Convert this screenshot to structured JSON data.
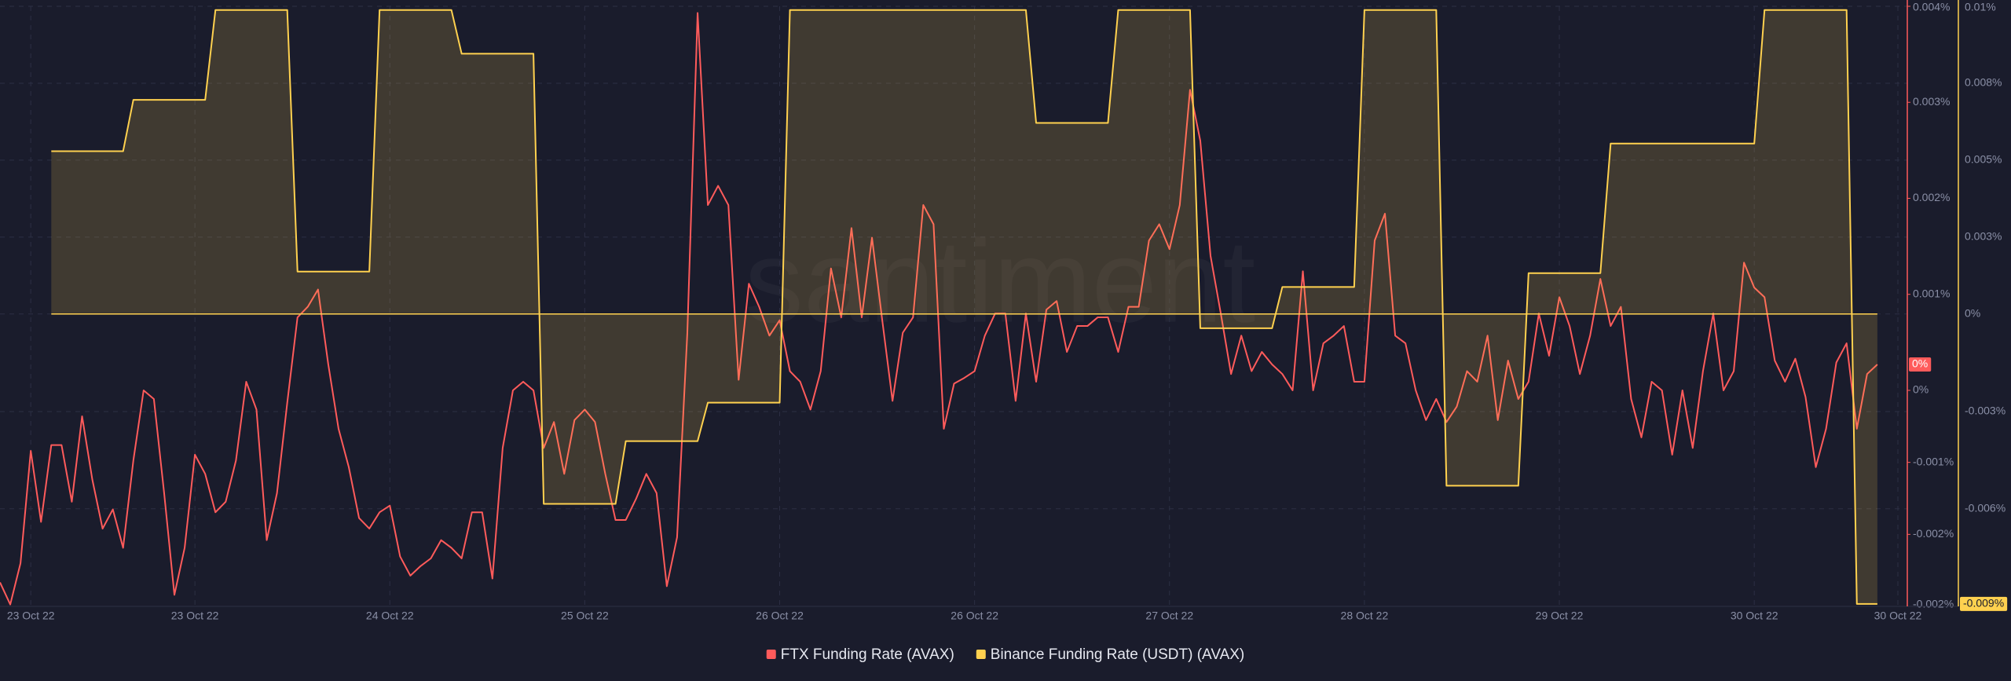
{
  "chart_data": {
    "type": "line",
    "watermark": "santiment",
    "categories": [
      null,
      null,
      null,
      "23 Oct 22",
      null,
      null,
      null,
      null,
      null,
      null,
      null,
      null,
      null,
      null,
      null,
      null,
      null,
      null,
      null,
      "23 Oct 22",
      null,
      null,
      null,
      null,
      null,
      null,
      null,
      null,
      null,
      null,
      null,
      null,
      null,
      null,
      null,
      null,
      null,
      null,
      "24 Oct 22",
      null,
      null,
      null,
      null,
      null,
      null,
      null,
      null,
      null,
      null,
      null,
      null,
      null,
      null,
      null,
      null,
      null,
      null,
      "25 Oct 22",
      null,
      null,
      null,
      null,
      null,
      null,
      null,
      null,
      null,
      null,
      null,
      null,
      null,
      null,
      null,
      null,
      null,
      null,
      "26 Oct 22",
      null,
      null,
      null,
      null,
      null,
      null,
      null,
      null,
      null,
      null,
      null,
      null,
      null,
      null,
      null,
      null,
      null,
      null,
      "26 Oct 22",
      null,
      null,
      null,
      null,
      null,
      null,
      null,
      null,
      null,
      null,
      null,
      null,
      null,
      null,
      null,
      null,
      null,
      null,
      "27 Oct 22",
      null,
      null,
      null,
      null,
      null,
      null,
      null,
      null,
      null,
      null,
      null,
      null,
      null,
      null,
      null,
      null,
      null,
      null,
      "28 Oct 22",
      null,
      null,
      null,
      null,
      null,
      null,
      null,
      null,
      null,
      null,
      null,
      null,
      null,
      null,
      null,
      null,
      null,
      null,
      "29 Oct 22",
      null,
      null,
      null,
      null,
      null,
      null,
      null,
      null,
      null,
      null,
      null,
      null,
      null,
      null,
      null,
      null,
      null,
      null,
      "30 Oct 22",
      null,
      null,
      null,
      null,
      null,
      null,
      null,
      null,
      null,
      null,
      null,
      null,
      null,
      "30 Oct 22"
    ],
    "series": [
      {
        "name": "FTX Funding Rate (AVAX)",
        "color": "#ff5b5b",
        "last_label": "0%",
        "values": [
          -0.002,
          -0.00223,
          -0.0018,
          -0.00063,
          -0.00137,
          -0.00057,
          -0.00057,
          -0.00116,
          -0.00027,
          -0.00093,
          -0.00144,
          -0.00124,
          -0.00164,
          -0.00073,
          0,
          -9e-05,
          -0.00107,
          -0.00213,
          -0.00164,
          -0.00067,
          -0.00087,
          -0.00127,
          -0.00116,
          -0.00073,
          9e-05,
          -0.0002,
          -0.00156,
          -0.00107,
          -0.00013,
          0.00076,
          0.00087,
          0.00105,
          0.00027,
          -0.0004,
          -0.0008,
          -0.00133,
          -0.00144,
          -0.00127,
          -0.0012,
          -0.00173,
          -0.00193,
          -0.00183,
          -0.00175,
          -0.00156,
          -0.00164,
          -0.00175,
          -0.00127,
          -0.00127,
          -0.00196,
          -0.0006,
          0,
          9e-05,
          0,
          -0.0006,
          -0.00033,
          -0.00087,
          -0.00031,
          -0.0002,
          -0.00033,
          -0.00087,
          -0.00135,
          -0.00135,
          -0.00113,
          -0.00087,
          -0.00107,
          -0.00204,
          -0.00153,
          0.0006,
          0.00393,
          0.00193,
          0.00213,
          0.00193,
          0.00011,
          0.00111,
          0.00087,
          0.00057,
          0.00073,
          0.0002,
          9e-05,
          -0.0002,
          0.0002,
          0.00127,
          0.00076,
          0.00169,
          0.00076,
          0.00159,
          0.00073,
          -0.00011,
          0.0006,
          0.00076,
          0.00193,
          0.00173,
          -0.0004,
          7e-05,
          0.00013,
          0.0002,
          0.00057,
          0.0008,
          0.0008,
          -0.00011,
          0.0008,
          9e-05,
          0.00084,
          0.00093,
          0.0004,
          0.00067,
          0.00067,
          0.00076,
          0.00076,
          0.0004,
          0.00087,
          0.00087,
          0.00156,
          0.00173,
          0.00147,
          0.00193,
          0.00313,
          0.0026,
          0.0014,
          0.0008,
          0.00017,
          0.00057,
          0.0002,
          0.0004,
          0.00027,
          0.00017,
          0,
          0.00124,
          0,
          0.00049,
          0.00057,
          0.00067,
          9e-05,
          9e-05,
          0.00156,
          0.00184,
          0.00057,
          0.00049,
          0,
          -0.00031,
          -9e-05,
          -0.00033,
          -0.00017,
          0.0002,
          9e-05,
          0.00057,
          -0.00031,
          0.00031,
          -9e-05,
          9e-05,
          0.0008,
          0.00036,
          0.00097,
          0.00067,
          0.00017,
          0.00057,
          0.00116,
          0.00067,
          0.00087,
          -9e-05,
          -0.00049,
          9e-05,
          0,
          -0.00067,
          0,
          -0.0006,
          0.0002,
          0.0008,
          0,
          0.0002,
          0.00133,
          0.00107,
          0.00097,
          0.00031,
          9e-05,
          0.00033,
          -7e-05,
          -0.0008,
          -0.0004,
          0.00029,
          0.00049,
          -0.0004,
          0.00017,
          0.00027,
          null,
          null
        ]
      },
      {
        "name": "Binance Funding Rate (USDT) (AVAX)",
        "color": "#ffd14f",
        "axis": "y2",
        "area": true,
        "last_label": "-0.009%",
        "values": [
          null,
          null,
          null,
          null,
          null,
          0.00529,
          0.00529,
          0.00529,
          0.00529,
          0.00529,
          0.00529,
          0.00529,
          0.00529,
          0.00696,
          0.00696,
          0.00696,
          0.00696,
          0.00696,
          0.00696,
          0.00696,
          0.00696,
          0.00988,
          0.00988,
          0.00988,
          0.00988,
          0.00988,
          0.00988,
          0.00988,
          0.00988,
          0.00138,
          0.00138,
          0.00138,
          0.00138,
          0.00138,
          0.00138,
          0.00138,
          0.00138,
          0.00988,
          0.00988,
          0.00988,
          0.00988,
          0.00988,
          0.00988,
          0.00988,
          0.00988,
          0.00846,
          0.00846,
          0.00846,
          0.00846,
          0.00846,
          0.00846,
          0.00846,
          0.00846,
          -0.00617,
          -0.00617,
          -0.00617,
          -0.00617,
          -0.00617,
          -0.00617,
          -0.00617,
          -0.00617,
          -0.00413,
          -0.00413,
          -0.00413,
          -0.00413,
          -0.00413,
          -0.00413,
          -0.00413,
          -0.00413,
          -0.00288,
          -0.00288,
          -0.00288,
          -0.00288,
          -0.00288,
          -0.00288,
          -0.00288,
          -0.00288,
          0.00988,
          0.00988,
          0.00988,
          0.00988,
          0.00988,
          0.00988,
          0.00988,
          0.00988,
          0.00988,
          0.00988,
          0.00988,
          0.00988,
          0.00988,
          0.00988,
          0.00988,
          0.00988,
          0.00988,
          0.00988,
          0.00988,
          0.00988,
          0.00988,
          0.00988,
          0.00988,
          0.00988,
          0.00621,
          0.00621,
          0.00621,
          0.00621,
          0.00621,
          0.00621,
          0.00621,
          0.00621,
          0.00988,
          0.00988,
          0.00988,
          0.00988,
          0.00988,
          0.00988,
          0.00988,
          0.00988,
          -0.00046,
          -0.00046,
          -0.00046,
          -0.00046,
          -0.00046,
          -0.00046,
          -0.00046,
          -0.00046,
          0.00088,
          0.00088,
          0.00088,
          0.00088,
          0.00088,
          0.00088,
          0.00088,
          0.00088,
          0.00988,
          0.00988,
          0.00988,
          0.00988,
          0.00988,
          0.00988,
          0.00988,
          0.00988,
          -0.00558,
          -0.00558,
          -0.00558,
          -0.00558,
          -0.00558,
          -0.00558,
          -0.00558,
          -0.00558,
          0.00133,
          0.00133,
          0.00133,
          0.00133,
          0.00133,
          0.00133,
          0.00133,
          0.00133,
          0.00554,
          0.00554,
          0.00554,
          0.00554,
          0.00554,
          0.00554,
          0.00554,
          0.00554,
          0.00554,
          0.00554,
          0.00554,
          0.00554,
          0.00554,
          0.00554,
          0.00554,
          0.00988,
          0.00988,
          0.00988,
          0.00988,
          0.00988,
          0.00988,
          0.00988,
          0.00988,
          0.00988,
          -0.00942,
          -0.00942,
          -0.00942,
          null,
          null
        ]
      }
    ],
    "ylim": [
      -0.00225,
      0.004
    ],
    "yticks": [
      {
        "value": 0.004,
        "label": "0.004%"
      },
      {
        "value": 0.003,
        "label": "0.003%"
      },
      {
        "value": 0.002,
        "label": "0.002%"
      },
      {
        "value": 0.001,
        "label": "0.001%"
      },
      {
        "value": 0,
        "label": "0%"
      },
      {
        "value": -0.00075,
        "label": "-0.001%"
      },
      {
        "value": -0.0015,
        "label": "-0.002%"
      },
      {
        "value": -0.00225,
        "label": "-0.002%"
      }
    ],
    "y2lim": [
      -0.0095,
      0.01
    ],
    "y2ticks": [
      {
        "value": 0.01,
        "label": "0.01%"
      },
      {
        "value": 0.0075,
        "label": "0.008%"
      },
      {
        "value": 0.005,
        "label": "0.005%"
      },
      {
        "value": 0.0025,
        "label": "0.003%"
      },
      {
        "value": 0,
        "label": "0%"
      },
      {
        "value": -0.00317,
        "label": "-0.003%"
      },
      {
        "value": -0.00633,
        "label": "-0.006%"
      }
    ],
    "grid": true,
    "legend": "bottom"
  }
}
